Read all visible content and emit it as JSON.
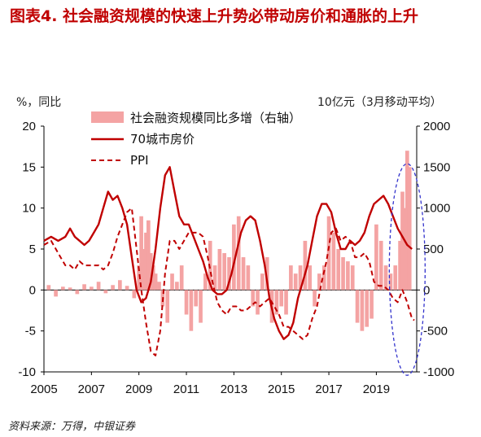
{
  "title": "图表4. 社会融资规模的快速上升势必带动房价和通胀的上升",
  "left_axis_note": "%，同比",
  "right_axis_note": "10亿元（3月移动平均）",
  "source": "资料来源：万得，中银证券",
  "colors": {
    "bars": "#F4A3A3",
    "house_price": "#C00000",
    "ppi": "#C00000",
    "ellipse": "#3333CC"
  },
  "chart_data": {
    "type": "bar+line",
    "legend_position": "top-center",
    "x_ticks": [
      "2005",
      "2007",
      "2009",
      "2011",
      "2013",
      "2015",
      "2017",
      "2019"
    ],
    "x_range": [
      2005.0,
      2020.7
    ],
    "left_axis": {
      "label": "%，同比",
      "range": [
        -10,
        20
      ],
      "ticks": [
        "-10",
        "-5",
        "0",
        "5",
        "10",
        "15",
        "20"
      ]
    },
    "right_axis": {
      "label": "10亿元（3月移动平均）",
      "range": [
        -1000,
        2000
      ],
      "ticks": [
        "-1000",
        "-500",
        "0",
        "500",
        "1000",
        "1500",
        "2000"
      ]
    },
    "series": [
      {
        "name": "社会融资规模同比多增（右轴）",
        "kind": "bar",
        "axis": "right",
        "points": [
          [
            2005.2,
            60
          ],
          [
            2005.5,
            -80
          ],
          [
            2005.8,
            40
          ],
          [
            2006.1,
            30
          ],
          [
            2006.4,
            -50
          ],
          [
            2006.7,
            70
          ],
          [
            2007.0,
            40
          ],
          [
            2007.3,
            100
          ],
          [
            2007.6,
            -40
          ],
          [
            2007.9,
            60
          ],
          [
            2008.2,
            120
          ],
          [
            2008.5,
            50
          ],
          [
            2008.8,
            -100
          ],
          [
            2009.0,
            300
          ],
          [
            2009.1,
            900
          ],
          [
            2009.2,
            500
          ],
          [
            2009.3,
            700
          ],
          [
            2009.4,
            850
          ],
          [
            2009.5,
            450
          ],
          [
            2009.6,
            300
          ],
          [
            2009.7,
            200
          ],
          [
            2009.85,
            100
          ],
          [
            2010.0,
            -200
          ],
          [
            2010.2,
            -400
          ],
          [
            2010.4,
            200
          ],
          [
            2010.6,
            100
          ],
          [
            2010.8,
            300
          ],
          [
            2011.0,
            -300
          ],
          [
            2011.2,
            -500
          ],
          [
            2011.4,
            -200
          ],
          [
            2011.6,
            -400
          ],
          [
            2011.8,
            200
          ],
          [
            2012.0,
            600
          ],
          [
            2012.2,
            300
          ],
          [
            2012.4,
            500
          ],
          [
            2012.6,
            450
          ],
          [
            2012.8,
            400
          ],
          [
            2013.0,
            800
          ],
          [
            2013.2,
            900
          ],
          [
            2013.4,
            400
          ],
          [
            2013.6,
            300
          ],
          [
            2013.8,
            -200
          ],
          [
            2014.0,
            -300
          ],
          [
            2014.2,
            200
          ],
          [
            2014.4,
            400
          ],
          [
            2014.6,
            -400
          ],
          [
            2014.8,
            -300
          ],
          [
            2015.0,
            -200
          ],
          [
            2015.2,
            -300
          ],
          [
            2015.4,
            300
          ],
          [
            2015.6,
            200
          ],
          [
            2015.8,
            300
          ],
          [
            2016.0,
            600
          ],
          [
            2016.2,
            300
          ],
          [
            2016.4,
            -200
          ],
          [
            2016.6,
            200
          ],
          [
            2016.8,
            300
          ],
          [
            2017.0,
            900
          ],
          [
            2017.2,
            700
          ],
          [
            2017.4,
            500
          ],
          [
            2017.6,
            400
          ],
          [
            2017.8,
            350
          ],
          [
            2018.0,
            300
          ],
          [
            2018.2,
            -400
          ],
          [
            2018.4,
            -500
          ],
          [
            2018.6,
            -450
          ],
          [
            2018.8,
            -350
          ],
          [
            2019.0,
            800
          ],
          [
            2019.2,
            600
          ],
          [
            2019.4,
            300
          ],
          [
            2019.6,
            200
          ],
          [
            2019.8,
            300
          ],
          [
            2020.0,
            600
          ],
          [
            2020.1,
            1200
          ],
          [
            2020.2,
            1000
          ],
          [
            2020.3,
            1700
          ],
          [
            2020.4,
            1500
          ]
        ]
      },
      {
        "name": "70城市房价",
        "kind": "line",
        "axis": "left",
        "points": [
          [
            2005.0,
            6
          ],
          [
            2005.3,
            6.5
          ],
          [
            2005.6,
            6
          ],
          [
            2005.9,
            6.5
          ],
          [
            2006.1,
            7.5
          ],
          [
            2006.3,
            6.5
          ],
          [
            2006.5,
            6
          ],
          [
            2006.7,
            5.5
          ],
          [
            2006.9,
            6
          ],
          [
            2007.1,
            7
          ],
          [
            2007.3,
            8
          ],
          [
            2007.5,
            10
          ],
          [
            2007.7,
            12
          ],
          [
            2007.9,
            11
          ],
          [
            2008.1,
            11.5
          ],
          [
            2008.3,
            10
          ],
          [
            2008.5,
            8
          ],
          [
            2008.7,
            4
          ],
          [
            2008.9,
            0
          ],
          [
            2009.1,
            -1.5
          ],
          [
            2009.3,
            -1
          ],
          [
            2009.5,
            1
          ],
          [
            2009.7,
            5
          ],
          [
            2009.9,
            10
          ],
          [
            2010.1,
            14
          ],
          [
            2010.3,
            15
          ],
          [
            2010.5,
            12
          ],
          [
            2010.7,
            9
          ],
          [
            2010.9,
            8
          ],
          [
            2011.1,
            8
          ],
          [
            2011.3,
            6.5
          ],
          [
            2011.5,
            5
          ],
          [
            2011.7,
            3.5
          ],
          [
            2011.9,
            1.5
          ],
          [
            2012.1,
            0
          ],
          [
            2012.3,
            -0.5
          ],
          [
            2012.5,
            -0.5
          ],
          [
            2012.7,
            0
          ],
          [
            2012.9,
            2
          ],
          [
            2013.1,
            4.5
          ],
          [
            2013.3,
            7
          ],
          [
            2013.5,
            8.5
          ],
          [
            2013.7,
            9
          ],
          [
            2013.9,
            8.5
          ],
          [
            2014.1,
            6
          ],
          [
            2014.3,
            3
          ],
          [
            2014.5,
            -1
          ],
          [
            2014.7,
            -3.5
          ],
          [
            2014.9,
            -5
          ],
          [
            2015.1,
            -6
          ],
          [
            2015.3,
            -5.5
          ],
          [
            2015.5,
            -4
          ],
          [
            2015.7,
            -1
          ],
          [
            2015.9,
            1
          ],
          [
            2016.1,
            3
          ],
          [
            2016.3,
            6
          ],
          [
            2016.5,
            9
          ],
          [
            2016.7,
            10.5
          ],
          [
            2016.9,
            10.5
          ],
          [
            2017.1,
            9.5
          ],
          [
            2017.3,
            7
          ],
          [
            2017.5,
            5
          ],
          [
            2017.7,
            5
          ],
          [
            2017.9,
            6
          ],
          [
            2018.1,
            5.5
          ],
          [
            2018.3,
            6
          ],
          [
            2018.5,
            7
          ],
          [
            2018.7,
            9
          ],
          [
            2018.9,
            10.5
          ],
          [
            2019.1,
            11
          ],
          [
            2019.3,
            11.5
          ],
          [
            2019.5,
            10.5
          ],
          [
            2019.7,
            9
          ],
          [
            2019.9,
            7.5
          ],
          [
            2020.1,
            6.5
          ],
          [
            2020.3,
            5.5
          ],
          [
            2020.5,
            5
          ]
        ]
      },
      {
        "name": "PPI",
        "kind": "line-dashed",
        "axis": "left",
        "points": [
          [
            2005.0,
            5.5
          ],
          [
            2005.3,
            6
          ],
          [
            2005.5,
            5
          ],
          [
            2005.7,
            4
          ],
          [
            2005.9,
            3
          ],
          [
            2006.1,
            3
          ],
          [
            2006.3,
            2.5
          ],
          [
            2006.5,
            3.5
          ],
          [
            2006.7,
            3
          ],
          [
            2006.9,
            3
          ],
          [
            2007.1,
            3
          ],
          [
            2007.3,
            3
          ],
          [
            2007.5,
            2.5
          ],
          [
            2007.7,
            3
          ],
          [
            2007.9,
            4.5
          ],
          [
            2008.1,
            6.5
          ],
          [
            2008.3,
            8
          ],
          [
            2008.5,
            9.5
          ],
          [
            2008.7,
            10
          ],
          [
            2008.9,
            5
          ],
          [
            2009.1,
            0
          ],
          [
            2009.3,
            -4
          ],
          [
            2009.5,
            -7.5
          ],
          [
            2009.7,
            -8
          ],
          [
            2009.9,
            -5
          ],
          [
            2010.1,
            2
          ],
          [
            2010.3,
            6
          ],
          [
            2010.5,
            6
          ],
          [
            2010.7,
            5
          ],
          [
            2010.9,
            6
          ],
          [
            2011.1,
            7
          ],
          [
            2011.3,
            7
          ],
          [
            2011.5,
            7
          ],
          [
            2011.7,
            6.5
          ],
          [
            2011.9,
            4
          ],
          [
            2012.1,
            1
          ],
          [
            2012.3,
            -1.5
          ],
          [
            2012.5,
            -2.5
          ],
          [
            2012.7,
            -3
          ],
          [
            2012.9,
            -2
          ],
          [
            2013.1,
            -2
          ],
          [
            2013.3,
            -2.5
          ],
          [
            2013.5,
            -2.5
          ],
          [
            2013.7,
            -2
          ],
          [
            2013.9,
            -1.5
          ],
          [
            2014.1,
            -2
          ],
          [
            2014.3,
            -1.5
          ],
          [
            2014.5,
            -1
          ],
          [
            2014.7,
            -2
          ],
          [
            2014.9,
            -3
          ],
          [
            2015.1,
            -4.5
          ],
          [
            2015.3,
            -4.5
          ],
          [
            2015.5,
            -5
          ],
          [
            2015.7,
            -5.5
          ],
          [
            2015.9,
            -6
          ],
          [
            2016.1,
            -5.5
          ],
          [
            2016.3,
            -3.5
          ],
          [
            2016.5,
            -2
          ],
          [
            2016.7,
            1
          ],
          [
            2016.9,
            3.5
          ],
          [
            2017.1,
            7
          ],
          [
            2017.3,
            7.5
          ],
          [
            2017.5,
            6
          ],
          [
            2017.7,
            6.5
          ],
          [
            2017.9,
            6
          ],
          [
            2018.1,
            4
          ],
          [
            2018.3,
            4
          ],
          [
            2018.5,
            4.5
          ],
          [
            2018.7,
            3.5
          ],
          [
            2018.9,
            1
          ],
          [
            2019.1,
            0.5
          ],
          [
            2019.3,
            0.5
          ],
          [
            2019.5,
            0
          ],
          [
            2019.7,
            -1
          ],
          [
            2019.9,
            -1.5
          ],
          [
            2020.1,
            0
          ],
          [
            2020.3,
            -1.5
          ],
          [
            2020.5,
            -3.5
          ],
          [
            2020.6,
            -3.7
          ]
        ]
      }
    ],
    "annotation": {
      "shape": "dashed-ellipse",
      "center": [
        2020.3,
        250
      ],
      "note": ""
    }
  }
}
